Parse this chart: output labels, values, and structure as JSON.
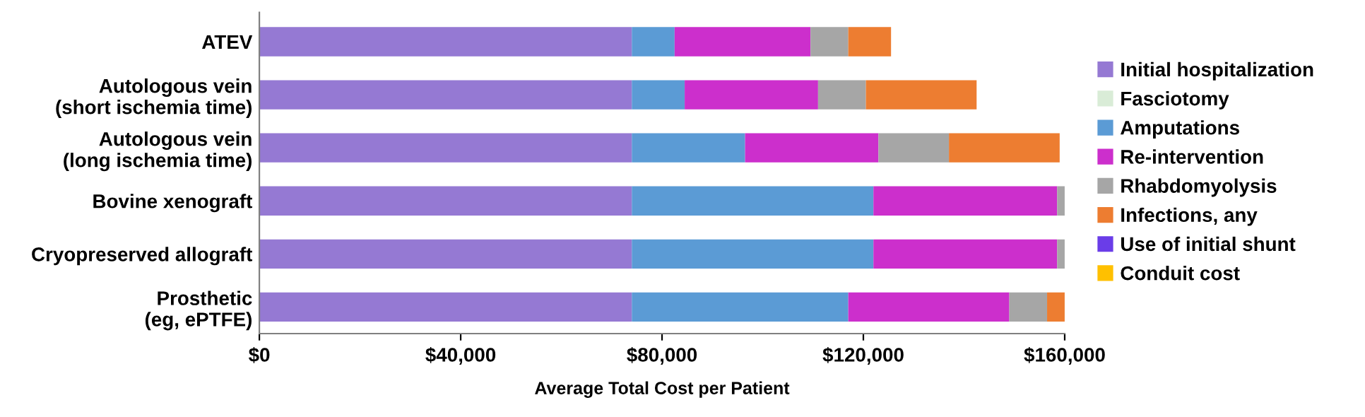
{
  "chart_data": {
    "type": "bar",
    "orientation": "horizontal",
    "stacked": true,
    "xlabel": "Average Total Cost per Patient",
    "categories": [
      "ATEV",
      "Autologous vein\n(short ischemia time)",
      "Autologous vein\n(long ischemia time)",
      "Bovine xenograft",
      "Cryopreserved allograft",
      "Prosthetic\n(eg, ePTFE)"
    ],
    "series": [
      {
        "name": "Initial hospitalization",
        "color": "#9579d3",
        "values": [
          74000,
          74000,
          74000,
          74000,
          74000,
          74000
        ]
      },
      {
        "name": "Fasciotomy",
        "color": "#d9ecd7",
        "values": [
          0,
          0,
          0,
          0,
          0,
          0
        ]
      },
      {
        "name": "Amputations",
        "color": "#5b9bd5",
        "values": [
          8500,
          10500,
          22500,
          48000,
          48000,
          43000
        ]
      },
      {
        "name": "Re-intervention",
        "color": "#cc2fcc",
        "values": [
          27000,
          26500,
          26500,
          36500,
          36500,
          32000
        ]
      },
      {
        "name": "Rhabdomyolysis",
        "color": "#a6a6a6",
        "values": [
          7500,
          9500,
          14000,
          1500,
          1500,
          7500
        ]
      },
      {
        "name": "Infections, any",
        "color": "#ed7d31",
        "values": [
          8500,
          22000,
          22000,
          0,
          0,
          3500
        ]
      },
      {
        "name": "Use of initial shunt",
        "color": "#6a3de8",
        "values": [
          0,
          0,
          0,
          0,
          0,
          0
        ]
      },
      {
        "name": "Conduit cost",
        "color": "#ffc000",
        "values": [
          0,
          0,
          0,
          0,
          0,
          0
        ]
      }
    ],
    "xlim": [
      0,
      160000
    ],
    "xticks": [
      {
        "value": 0,
        "label": "$0"
      },
      {
        "value": 40000,
        "label": "$40,000"
      },
      {
        "value": 80000,
        "label": "$80,000"
      },
      {
        "value": 120000,
        "label": "$120,000"
      },
      {
        "value": 160000,
        "label": "$160,000"
      }
    ],
    "grid": false,
    "legend": "right"
  }
}
